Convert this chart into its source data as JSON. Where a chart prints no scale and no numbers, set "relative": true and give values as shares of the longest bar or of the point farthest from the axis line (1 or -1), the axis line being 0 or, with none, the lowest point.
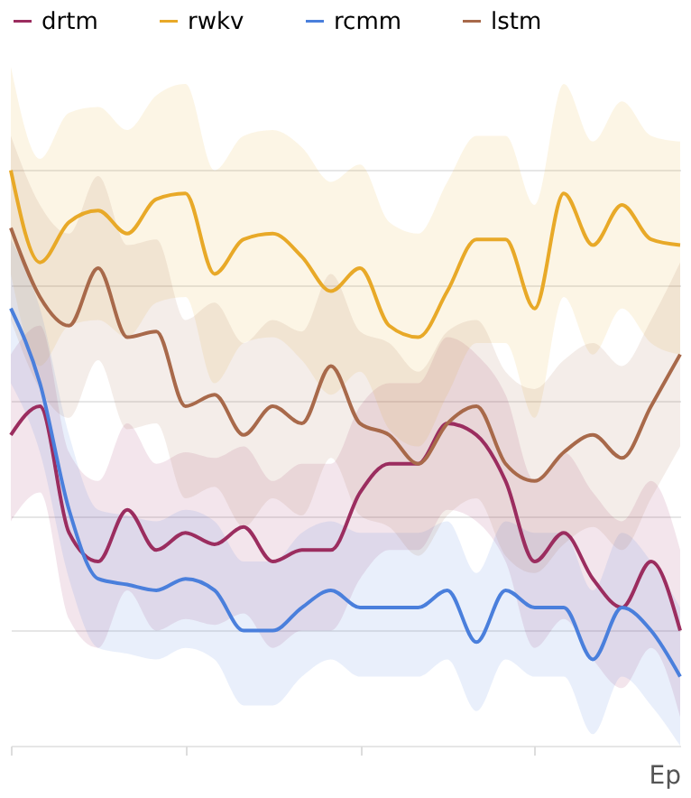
{
  "chart_data": {
    "type": "line",
    "relative": true,
    "xlabel": "Ep",
    "legend": "top",
    "grid": "y",
    "tick_labels": false,
    "marker": "none",
    "line_style": "solid",
    "categories": [
      null,
      null,
      null,
      null,
      null,
      null,
      null,
      null,
      null,
      null,
      null,
      null,
      null,
      null,
      null,
      null,
      null,
      null,
      null,
      null,
      null,
      null,
      null,
      null
    ],
    "series": [
      {
        "name": "drtm",
        "color": "#9b2d5f",
        "values": [
          0.54,
          0.59,
          0.37,
          0.32,
          0.41,
          0.34,
          0.37,
          0.35,
          0.38,
          0.32,
          0.34,
          0.34,
          0.44,
          0.49,
          0.49,
          0.56,
          0.54,
          0.46,
          0.32,
          0.37,
          0.29,
          0.24,
          0.32,
          0.2
        ],
        "lower": [
          0.39,
          0.44,
          0.22,
          0.17,
          0.27,
          0.2,
          0.22,
          0.21,
          0.23,
          0.17,
          0.2,
          0.2,
          0.29,
          0.34,
          0.34,
          0.41,
          0.39,
          0.32,
          0.17,
          0.22,
          0.15,
          0.1,
          0.17,
          0.05
        ],
        "upper": [
          0.68,
          0.73,
          0.51,
          0.46,
          0.56,
          0.49,
          0.51,
          0.5,
          0.52,
          0.46,
          0.49,
          0.49,
          0.59,
          0.63,
          0.63,
          0.71,
          0.68,
          0.61,
          0.46,
          0.51,
          0.44,
          0.39,
          0.46,
          0.34
        ]
      },
      {
        "name": "rwkv",
        "color": "#e8a928",
        "values": [
          1,
          0.84,
          0.91,
          0.93,
          0.89,
          0.95,
          0.96,
          0.82,
          0.88,
          0.89,
          0.85,
          0.79,
          0.83,
          0.73,
          0.71,
          0.79,
          0.88,
          0.88,
          0.76,
          0.96,
          0.87,
          0.94,
          0.88,
          0.87
        ],
        "lower": [
          0.82,
          0.66,
          0.73,
          0.74,
          0.71,
          0.77,
          0.78,
          0.63,
          0.7,
          0.71,
          0.67,
          0.61,
          0.65,
          0.55,
          0.52,
          0.61,
          0.7,
          0.7,
          0.57,
          0.78,
          0.68,
          0.76,
          0.7,
          0.68
        ],
        "upper": [
          1.18,
          1.02,
          1.1,
          1.11,
          1.07,
          1.13,
          1.15,
          1.0,
          1.06,
          1.07,
          1.04,
          0.98,
          1.01,
          0.91,
          0.89,
          0.98,
          1.06,
          1.06,
          0.94,
          1.15,
          1.05,
          1.12,
          1.06,
          1.05
        ]
      },
      {
        "name": "rcmm",
        "color": "#4a7fdc",
        "values": [
          0.76,
          0.63,
          0.41,
          0.29,
          0.28,
          0.27,
          0.29,
          0.27,
          0.2,
          0.2,
          0.24,
          0.27,
          0.24,
          0.24,
          0.24,
          0.27,
          0.18,
          0.27,
          0.24,
          0.24,
          0.15,
          0.24,
          0.2,
          0.12
        ],
        "lower": [
          0.63,
          0.51,
          0.29,
          0.17,
          0.16,
          0.15,
          0.17,
          0.15,
          0.07,
          0.07,
          0.12,
          0.15,
          0.12,
          0.12,
          0.12,
          0.15,
          0.06,
          0.15,
          0.12,
          0.12,
          0.02,
          0.12,
          0.07,
          0
        ],
        "upper": [
          0.88,
          0.76,
          0.54,
          0.41,
          0.4,
          0.39,
          0.41,
          0.39,
          0.32,
          0.32,
          0.37,
          0.39,
          0.37,
          0.37,
          0.37,
          0.39,
          0.3,
          0.39,
          0.37,
          0.37,
          0.27,
          0.37,
          0.32,
          0.24
        ]
      },
      {
        "name": "lstm",
        "color": "#a8694a",
        "values": [
          0.9,
          0.78,
          0.73,
          0.83,
          0.71,
          0.72,
          0.59,
          0.61,
          0.54,
          0.59,
          0.56,
          0.66,
          0.56,
          0.54,
          0.49,
          0.56,
          0.59,
          0.49,
          0.46,
          0.51,
          0.54,
          0.5,
          0.59,
          0.68
        ],
        "lower": [
          0.74,
          0.62,
          0.57,
          0.67,
          0.55,
          0.56,
          0.43,
          0.45,
          0.38,
          0.43,
          0.4,
          0.5,
          0.4,
          0.38,
          0.33,
          0.4,
          0.43,
          0.33,
          0.3,
          0.35,
          0.38,
          0.34,
          0.43,
          0.52
        ],
        "upper": [
          1.06,
          0.94,
          0.89,
          0.99,
          0.87,
          0.88,
          0.74,
          0.77,
          0.7,
          0.74,
          0.72,
          0.82,
          0.72,
          0.7,
          0.65,
          0.72,
          0.74,
          0.65,
          0.62,
          0.67,
          0.7,
          0.66,
          0.74,
          0.84
        ]
      }
    ]
  }
}
